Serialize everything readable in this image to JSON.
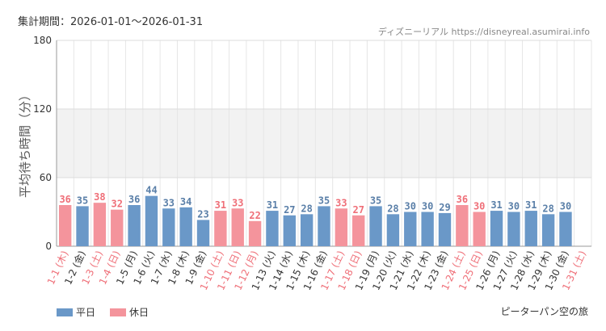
{
  "period_label": "集計期間：2026-01-01～2026-01-31",
  "credit": "ディズニーリアル https://disneyreal.asumirai.info",
  "footer": "ピーターパン空の旅",
  "colors": {
    "weekday": "#6a98c8",
    "holiday": "#f4949c",
    "weekday_label": "#5a7fa8",
    "holiday_label": "#ef6f78",
    "band": "#f2f2f2"
  },
  "legend": [
    {
      "label": "平日",
      "color": "#6a98c8"
    },
    {
      "label": "休日",
      "color": "#f4949c"
    }
  ],
  "chart_data": {
    "type": "bar",
    "ylabel": "平均待ち時間（分）",
    "ylim": [
      0,
      180
    ],
    "yticks": [
      0,
      60,
      120,
      180
    ],
    "shaded_band": [
      60,
      120
    ],
    "categories": [
      "1-1 (木)",
      "1-2 (金)",
      "1-3 (土)",
      "1-4 (日)",
      "1-5 (月)",
      "1-6 (火)",
      "1-7 (水)",
      "1-8 (木)",
      "1-9 (金)",
      "1-10 (土)",
      "1-11 (日)",
      "1-12 (月)",
      "1-13 (火)",
      "1-14 (水)",
      "1-15 (木)",
      "1-16 (金)",
      "1-17 (土)",
      "1-18 (日)",
      "1-19 (月)",
      "1-20 (火)",
      "1-21 (水)",
      "1-22 (木)",
      "1-23 (金)",
      "1-24 (土)",
      "1-25 (日)",
      "1-26 (月)",
      "1-27 (火)",
      "1-28 (水)",
      "1-29 (木)",
      "1-30 (金)",
      "1-31 (土)"
    ],
    "values": [
      36,
      35,
      38,
      32,
      36,
      44,
      33,
      34,
      23,
      31,
      33,
      22,
      31,
      27,
      28,
      35,
      33,
      27,
      35,
      28,
      30,
      30,
      29,
      36,
      30,
      31,
      30,
      31,
      28,
      30,
      null
    ],
    "day_type": [
      "holiday",
      "weekday",
      "holiday",
      "holiday",
      "weekday",
      "weekday",
      "weekday",
      "weekday",
      "weekday",
      "holiday",
      "holiday",
      "holiday",
      "weekday",
      "weekday",
      "weekday",
      "weekday",
      "holiday",
      "holiday",
      "weekday",
      "weekday",
      "weekday",
      "weekday",
      "weekday",
      "holiday",
      "holiday",
      "weekday",
      "weekday",
      "weekday",
      "weekday",
      "weekday",
      "holiday"
    ],
    "series": [
      {
        "name": "平日"
      },
      {
        "name": "休日"
      }
    ],
    "grid": true,
    "legend_position": "bottom-left"
  }
}
